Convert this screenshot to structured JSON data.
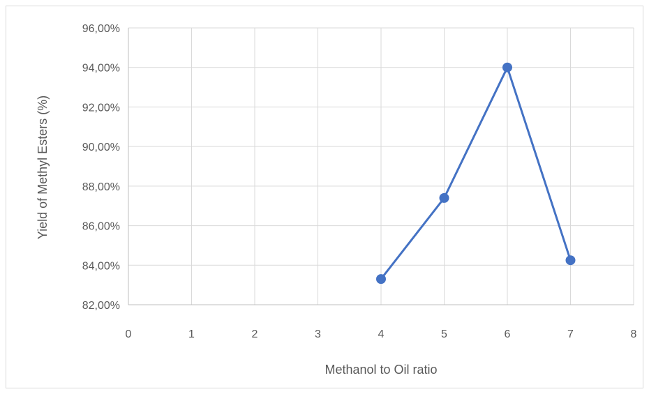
{
  "chart_data": {
    "type": "scatter",
    "title": "",
    "xlabel": "Methanol to Oil ratio",
    "ylabel": "Yield of Methyl Esters (%)",
    "xlim": [
      0,
      8
    ],
    "ylim": [
      0.82,
      0.96
    ],
    "x_ticks": [
      0,
      1,
      2,
      3,
      4,
      5,
      6,
      7,
      8
    ],
    "y_ticks": [
      0.82,
      0.84,
      0.86,
      0.88,
      0.9,
      0.92,
      0.94,
      0.96
    ],
    "x_tick_labels": [
      "0",
      "1",
      "2",
      "3",
      "4",
      "5",
      "6",
      "7",
      "8"
    ],
    "y_tick_labels": [
      "82,00%",
      "84,00%",
      "86,00%",
      "88,00%",
      "90,00%",
      "92,00%",
      "94,00%",
      "96,00%"
    ],
    "grid": true,
    "legend": "none",
    "series": [
      {
        "x": [
          4,
          5,
          6,
          7
        ],
        "values": [
          0.833,
          0.874,
          0.94,
          0.8425
        ],
        "color": "#4472C4",
        "line": true,
        "markers": true
      }
    ]
  }
}
